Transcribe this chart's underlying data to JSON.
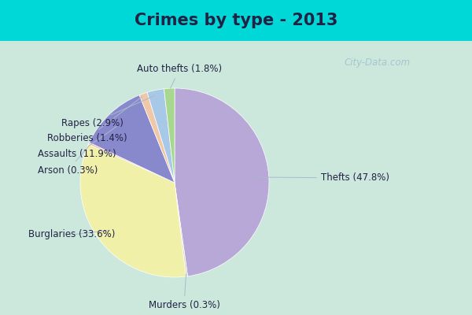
{
  "title": "Crimes by type - 2013",
  "slices": [
    {
      "label": "Thefts",
      "pct": 47.8,
      "color": "#b8a8d8"
    },
    {
      "label": "Murders",
      "pct": 0.3,
      "color": "#d8d8c0"
    },
    {
      "label": "Burglaries",
      "pct": 33.6,
      "color": "#f0f0a8"
    },
    {
      "label": "Arson",
      "pct": 0.3,
      "color": "#f0b8a8"
    },
    {
      "label": "Assaults",
      "pct": 11.9,
      "color": "#8888cc"
    },
    {
      "label": "Robberies",
      "pct": 1.4,
      "color": "#f0c8a8"
    },
    {
      "label": "Rapes",
      "pct": 2.9,
      "color": "#a8c8e8"
    },
    {
      "label": "Auto thefts",
      "pct": 1.8,
      "color": "#a8d890"
    }
  ],
  "bg_cyan": "#00d8d8",
  "bg_main": "#cce8dc",
  "title_color": "#222244",
  "title_fontsize": 15,
  "label_fontsize": 8.5,
  "label_color": "#222244",
  "watermark": "City-Data.com",
  "watermark_color": "#99bbcc"
}
